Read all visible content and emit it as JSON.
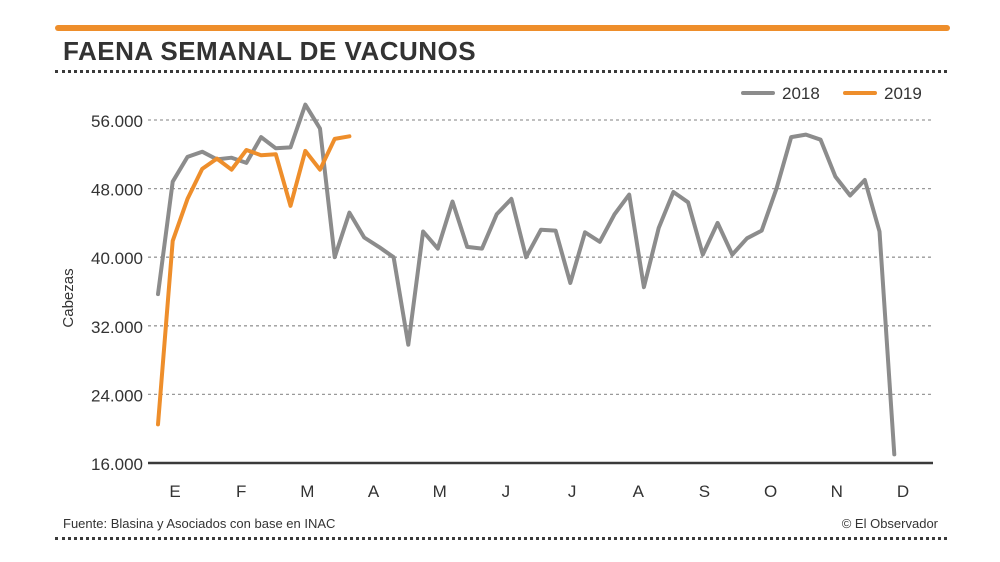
{
  "header": {
    "title": "FAENA SEMANAL DE VACUNOS"
  },
  "footer": {
    "source": "Fuente: Blasina y Asociados con base en INAC",
    "credit": "© El Observador"
  },
  "colors": {
    "accent": "#ee8e2b",
    "series_2018": "#8c8c8c",
    "series_2019": "#ee8e2b",
    "grid": "#9a9a9a",
    "text": "#333333"
  },
  "chart_data": {
    "type": "line",
    "title": "FAENA SEMANAL DE VACUNOS",
    "xlabel": "",
    "ylabel": "Cabezas",
    "ylim": [
      16000,
      56000
    ],
    "yticks": [
      16000,
      24000,
      32000,
      40000,
      48000,
      56000
    ],
    "ytick_labels": [
      "16.000",
      "24.000",
      "32.000",
      "40.000",
      "48.000",
      "56.000"
    ],
    "month_labels": [
      "E",
      "F",
      "M",
      "A",
      "M",
      "J",
      "J",
      "A",
      "S",
      "O",
      "N",
      "D"
    ],
    "x_unit": "week",
    "xlim": [
      1,
      52
    ],
    "legend": "top-right",
    "series": [
      {
        "name": "2018",
        "color": "#8c8c8c",
        "values": [
          35700,
          48800,
          51700,
          52300,
          51400,
          51600,
          51000,
          54000,
          52700,
          52800,
          57800,
          55000,
          40000,
          45200,
          42300,
          41200,
          40000,
          29800,
          43000,
          41000,
          46500,
          41200,
          41000,
          45000,
          46800,
          40000,
          43200,
          43100,
          37000,
          42900,
          41800,
          45000,
          47300,
          36500,
          43400,
          47600,
          46400,
          40300,
          44000,
          40300,
          42200,
          43100,
          48000,
          54000,
          54300,
          53700,
          49400,
          47200,
          49000,
          43000,
          17000
        ]
      },
      {
        "name": "2019",
        "color": "#ee8e2b",
        "values": [
          20500,
          41900,
          46800,
          50300,
          51500,
          50200,
          52500,
          51900,
          52000,
          46000,
          52400,
          50200,
          53800,
          54100
        ]
      }
    ]
  }
}
